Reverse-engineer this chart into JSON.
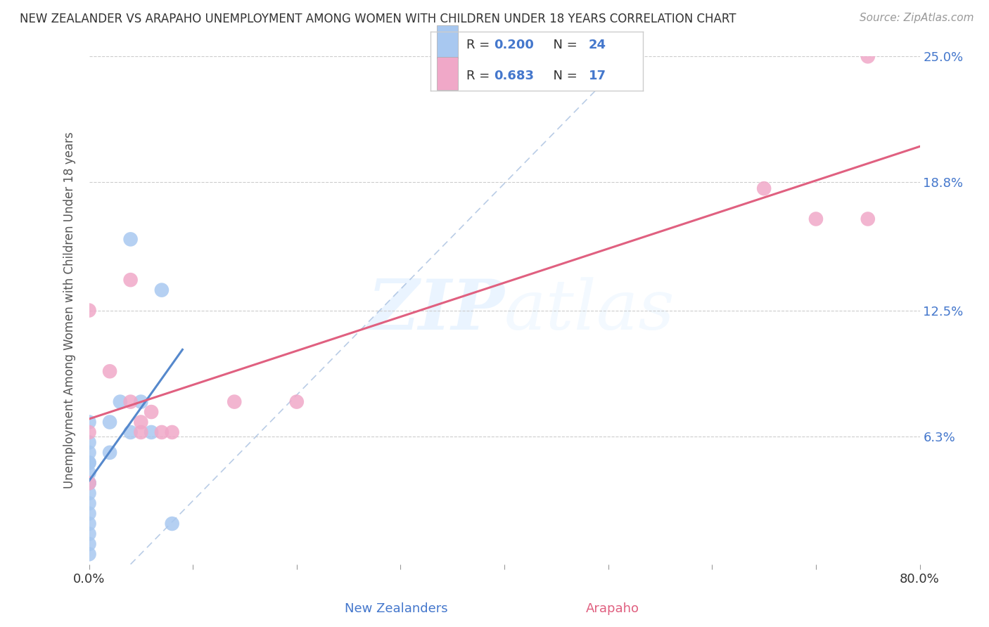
{
  "title": "NEW ZEALANDER VS ARAPAHO UNEMPLOYMENT AMONG WOMEN WITH CHILDREN UNDER 18 YEARS CORRELATION CHART",
  "source": "Source: ZipAtlas.com",
  "xlabel_bottom": [
    "New Zealanders",
    "Arapaho"
  ],
  "ylabel": "Unemployment Among Women with Children Under 18 years",
  "xlim": [
    0.0,
    0.8
  ],
  "ylim": [
    0.0,
    0.25
  ],
  "ytick_labels_right": [
    "25.0%",
    "18.8%",
    "12.5%",
    "6.3%"
  ],
  "ytick_vals_right": [
    0.25,
    0.188,
    0.125,
    0.063
  ],
  "nz_R": 0.2,
  "nz_N": 24,
  "ara_R": 0.683,
  "ara_N": 17,
  "nz_color": "#a8c8f0",
  "ara_color": "#f0a8c8",
  "nz_line_color": "#5588cc",
  "ara_line_color": "#e06080",
  "diagonal_color": "#a8c0e0",
  "watermark_zip": "ZIP",
  "watermark_atlas": "atlas",
  "background_color": "#ffffff",
  "nz_points_x": [
    0.0,
    0.0,
    0.0,
    0.0,
    0.0,
    0.0,
    0.0,
    0.0,
    0.0,
    0.0,
    0.0,
    0.0,
    0.0,
    0.0,
    0.0,
    0.02,
    0.02,
    0.03,
    0.04,
    0.04,
    0.05,
    0.06,
    0.07,
    0.08
  ],
  "nz_points_y": [
    0.005,
    0.01,
    0.015,
    0.02,
    0.025,
    0.03,
    0.035,
    0.04,
    0.04,
    0.045,
    0.05,
    0.05,
    0.055,
    0.06,
    0.07,
    0.055,
    0.07,
    0.08,
    0.065,
    0.16,
    0.08,
    0.065,
    0.135,
    0.02
  ],
  "ara_points_x": [
    0.0,
    0.0,
    0.0,
    0.02,
    0.04,
    0.04,
    0.05,
    0.05,
    0.06,
    0.07,
    0.08,
    0.14,
    0.2,
    0.65,
    0.7,
    0.75,
    0.75
  ],
  "ara_points_y": [
    0.125,
    0.065,
    0.04,
    0.095,
    0.08,
    0.14,
    0.065,
    0.07,
    0.075,
    0.065,
    0.065,
    0.08,
    0.08,
    0.185,
    0.17,
    0.25,
    0.17
  ],
  "nz_line_xrange": [
    0.0,
    0.09
  ],
  "ara_line_xrange": [
    0.0,
    0.8
  ],
  "diag_xrange": [
    0.04,
    0.52
  ],
  "diag_yrange": [
    0.0,
    0.25
  ]
}
